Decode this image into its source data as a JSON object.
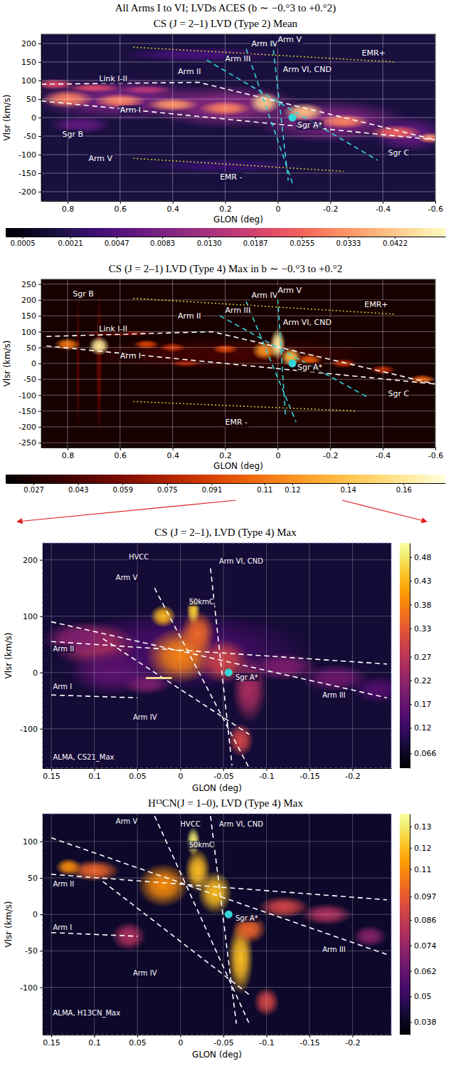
{
  "title": "All Arms I to VI; LVDs ACES (b ∼ −0.°3 to +0.°2)",
  "chart_data": [
    {
      "type": "heatmap",
      "title": "CS (J = 2–1) LVD (Type 2) Mean",
      "x_label": "GLON (deg)",
      "y_label": "Vlsr (km/s)",
      "xlim": [
        0.9,
        -0.6
      ],
      "xticks": [
        0.8,
        0.6,
        0.4,
        0.2,
        0,
        -0.2,
        -0.4,
        -0.6
      ],
      "ylim": [
        -225,
        225
      ],
      "yticks": [
        -200,
        -150,
        -100,
        -50,
        0,
        50,
        100,
        150,
        200
      ],
      "grid": true,
      "color": "magma",
      "background": 0.0015,
      "emission": {
        "l": [
          0.6,
          0.2,
          -0.2,
          -0.5,
          0.75,
          0.3,
          0.2,
          0.8,
          0.6,
          0.4,
          0.2,
          0.05,
          -0.1,
          -0.25,
          -0.45,
          -0.58,
          0.85,
          0.7,
          0.5
        ],
        "v": [
          50,
          30,
          -10,
          -45,
          -20,
          170,
          -130,
          50,
          45,
          35,
          25,
          40,
          15,
          -10,
          -40,
          -55,
          90,
          80,
          75
        ],
        "dl": [
          0.35,
          0.3,
          0.3,
          0.15,
          0.12,
          0.3,
          0.3,
          0.1,
          0.1,
          0.1,
          0.1,
          0.06,
          0.08,
          0.1,
          0.1,
          0.05,
          0.08,
          0.1,
          0.1
        ],
        "dv": [
          60,
          60,
          60,
          50,
          25,
          20,
          20,
          25,
          20,
          18,
          20,
          30,
          25,
          20,
          20,
          15,
          15,
          12,
          12
        ],
        "values": [
          0.008,
          0.01,
          0.009,
          0.006,
          0.006,
          0.004,
          0.003,
          0.03,
          0.03,
          0.033,
          0.03,
          0.042,
          0.04,
          0.03,
          0.025,
          0.03,
          0.02,
          0.02,
          0.015
        ]
      },
      "lines": [
        {
          "color": "#ffffff",
          "line_style": "dashed",
          "l": [
            0.9,
            0.3,
            -0.6
          ],
          "v": [
            90,
            95,
            -60
          ]
        },
        {
          "color": "#ffffff",
          "line_style": "dashed",
          "l": [
            0.9,
            -0.6
          ],
          "v": [
            45,
            -60
          ]
        },
        {
          "color": "#33d6d6",
          "line_style": "dashed",
          "l": [
            0.27,
            -0.38
          ],
          "v": [
            155,
            -115
          ]
        },
        {
          "color": "#33d6d6",
          "line_style": "dashed",
          "l": [
            0.12,
            -0.06
          ],
          "v": [
            185,
            -185
          ]
        },
        {
          "color": "#33d6d6",
          "line_style": "dashed",
          "l": [
            0.02,
            -0.04
          ],
          "v": [
            205,
            -170
          ]
        },
        {
          "color": "#c8c832",
          "line_style": "dotted",
          "l": [
            0.55,
            -0.45
          ],
          "v": [
            190,
            150
          ]
        },
        {
          "color": "#c8c832",
          "line_style": "dotted",
          "l": [
            0.55,
            -0.25
          ],
          "v": [
            -110,
            -145
          ]
        }
      ],
      "points": {
        "l": [
          -0.056
        ],
        "v": [
          0
        ],
        "color": "#33d6d6"
      },
      "annotations": [
        {
          "text": "Link I-II",
          "l": 0.68,
          "v": 105
        },
        {
          "text": "Arm I",
          "l": 0.6,
          "v": 20
        },
        {
          "text": "Arm II",
          "l": 0.38,
          "v": 125
        },
        {
          "text": "Arm III",
          "l": 0.2,
          "v": 160
        },
        {
          "text": "Arm IV",
          "l": 0.1,
          "v": 200
        },
        {
          "text": "Arm V",
          "l": 0.0,
          "v": 212
        },
        {
          "text": "Arm VI, CND",
          "l": -0.02,
          "v": 130
        },
        {
          "text": "EMR+",
          "l": -0.32,
          "v": 175
        },
        {
          "text": "Sgr B",
          "l": 0.82,
          "v": -45
        },
        {
          "text": "Sgr A*",
          "l": -0.075,
          "v": -20
        },
        {
          "text": "Sgr C",
          "l": -0.42,
          "v": -95
        },
        {
          "text": "Arm V",
          "l": 0.72,
          "v": -110
        },
        {
          "text": "EMR -",
          "l": 0.22,
          "v": -160
        }
      ],
      "colorbar": {
        "range": [
          0.0002,
          0.053
        ],
        "ticks": [
          0.0005,
          0.0021,
          0.0047,
          0.0083,
          {
            "value": 0.013,
            "label": "0.0130"
          },
          0.0187,
          0.0255,
          0.0333,
          0.0422
        ]
      }
    },
    {
      "type": "heatmap",
      "title": "CS (J = 2–1) LVD (Type 4) Max in b ∼ −0.°3 to +0.°2",
      "x_label": "GLON (deg)",
      "y_label": "Vlsr (km/s)",
      "xlim": [
        0.9,
        -0.6
      ],
      "xticks": [
        0.8,
        0.6,
        0.4,
        0.2,
        0,
        -0.2,
        -0.4,
        -0.6
      ],
      "ylim": [
        -265,
        265
      ],
      "yticks": [
        -250,
        -200,
        -150,
        -100,
        -50,
        0,
        50,
        100,
        150,
        200,
        250
      ],
      "grid": true,
      "color": "hot",
      "background": 0.025,
      "emission": {
        "l": [
          0.2,
          0.68,
          0.76,
          0.6,
          0.8,
          0.68,
          0.5,
          0.4,
          0.2,
          0.05,
          0.0,
          -0.05,
          -0.12,
          -0.25,
          -0.4,
          -0.55,
          0.35
        ],
        "v": [
          30,
          0,
          0,
          95,
          60,
          55,
          60,
          50,
          45,
          40,
          60,
          20,
          10,
          0,
          -20,
          -50,
          0
        ],
        "dl": [
          0.6,
          0.012,
          0.008,
          0.15,
          0.05,
          0.04,
          0.05,
          0.05,
          0.05,
          0.05,
          0.03,
          0.04,
          0.05,
          0.05,
          0.05,
          0.05,
          0.06
        ],
        "dv": [
          50,
          240,
          240,
          10,
          20,
          30,
          15,
          15,
          15,
          30,
          50,
          30,
          20,
          15,
          15,
          15,
          12
        ],
        "values": [
          0.04,
          0.05,
          0.045,
          0.06,
          0.11,
          0.16,
          0.09,
          0.08,
          0.09,
          0.12,
          0.16,
          0.14,
          0.1,
          0.08,
          0.08,
          0.1,
          0.07
        ]
      },
      "lines": [
        {
          "color": "#ffffff",
          "line_style": "dashed",
          "l": [
            0.88,
            0.25,
            -0.6
          ],
          "v": [
            85,
            100,
            -65
          ]
        },
        {
          "color": "#ffffff",
          "line_style": "dashed",
          "l": [
            0.88,
            -0.6
          ],
          "v": [
            55,
            -65
          ]
        },
        {
          "color": "#33d6d6",
          "line_style": "dashed",
          "l": [
            0.22,
            -0.35
          ],
          "v": [
            150,
            -110
          ]
        },
        {
          "color": "#33d6d6",
          "line_style": "dashed",
          "l": [
            0.12,
            -0.07
          ],
          "v": [
            195,
            -185
          ]
        },
        {
          "color": "#33d6d6",
          "line_style": "dashed",
          "l": [
            0.0,
            -0.03
          ],
          "v": [
            205,
            -170
          ]
        },
        {
          "color": "#c8c832",
          "line_style": "dotted",
          "l": [
            0.55,
            -0.45
          ],
          "v": [
            205,
            155
          ]
        },
        {
          "color": "#c8c832",
          "line_style": "dotted",
          "l": [
            0.55,
            -0.3
          ],
          "v": [
            -120,
            -150
          ]
        }
      ],
      "points": {
        "l": [
          -0.056
        ],
        "v": [
          0
        ],
        "color": "#33d6d6"
      },
      "annotations": [
        {
          "text": "Sgr B",
          "l": 0.78,
          "v": 220
        },
        {
          "text": "Link I-II",
          "l": 0.68,
          "v": 110
        },
        {
          "text": "Arm I",
          "l": 0.6,
          "v": 25
        },
        {
          "text": "Arm II",
          "l": 0.38,
          "v": 150
        },
        {
          "text": "Arm III",
          "l": 0.2,
          "v": 168
        },
        {
          "text": "Arm IV",
          "l": 0.1,
          "v": 215
        },
        {
          "text": "Arm V",
          "l": 0.0,
          "v": 232
        },
        {
          "text": "Arm VI, CND",
          "l": -0.02,
          "v": 130
        },
        {
          "text": "EMR+",
          "l": -0.33,
          "v": 185
        },
        {
          "text": "Sgr A*",
          "l": -0.075,
          "v": -12
        },
        {
          "text": "Sgr C",
          "l": -0.42,
          "v": -95
        },
        {
          "text": "EMR -",
          "l": 0.2,
          "v": -185
        }
      ],
      "colorbar": {
        "range": [
          0.017,
          0.175
        ],
        "ticks": [
          0.027,
          0.043,
          0.059,
          0.075,
          0.091,
          0.11,
          0.12,
          0.14,
          0.16
        ]
      }
    },
    {
      "type": "heatmap",
      "title": "CS (J = 2–1), LVD (Type 4) Max",
      "x_label": "GLON (deg)",
      "y_label": "Vlsr (km/s)",
      "xlim": [
        0.16,
        -0.245
      ],
      "xticks": [
        0.15,
        0.1,
        0.05,
        0,
        -0.05,
        -0.1,
        -0.15,
        -0.2
      ],
      "ylim": [
        -170,
        230
      ],
      "yticks": [
        -100,
        0,
        100,
        200
      ],
      "grid": true,
      "color": "inferno",
      "background": 0.08,
      "emission": {
        "l": [
          0.0,
          0.1,
          0.0,
          0.02,
          -0.02,
          -0.05,
          -0.08,
          -0.07,
          -0.12,
          -0.18,
          -0.23,
          0.12,
          0.04,
          0.08,
          -0.015
        ],
        "v": [
          40,
          50,
          30,
          100,
          70,
          20,
          -30,
          -120,
          10,
          -10,
          -30,
          60,
          -20,
          0,
          110
        ],
        "dl": [
          0.15,
          0.05,
          0.04,
          0.015,
          0.02,
          0.03,
          0.02,
          0.015,
          0.04,
          0.04,
          0.03,
          0.04,
          0.03,
          0.05,
          0.008
        ],
        "dv": [
          70,
          40,
          50,
          20,
          40,
          40,
          60,
          30,
          25,
          25,
          25,
          30,
          20,
          40,
          25
        ],
        "values": [
          0.14,
          0.25,
          0.38,
          0.43,
          0.35,
          0.3,
          0.25,
          0.3,
          0.2,
          0.18,
          0.15,
          0.2,
          0.2,
          0.16,
          0.45
        ]
      },
      "lines": [
        {
          "color": "#ffffff",
          "line_style": "dashed",
          "l": [
            0.15,
            -0.24
          ],
          "v": [
            90,
            -45
          ]
        },
        {
          "color": "#ffffff",
          "line_style": "dashed",
          "l": [
            0.15,
            -0.24
          ],
          "v": [
            55,
            15
          ]
        },
        {
          "color": "#ffffff",
          "line_style": "dashed",
          "l": [
            0.15,
            0.05
          ],
          "v": [
            -40,
            -45
          ]
        },
        {
          "color": "#ffffff",
          "line_style": "dashed",
          "l": [
            0.03,
            -0.08
          ],
          "v": [
            150,
            -170
          ]
        },
        {
          "color": "#ffffff",
          "line_style": "dashed",
          "l": [
            -0.035,
            -0.06
          ],
          "v": [
            185,
            -165
          ]
        },
        {
          "color": "#ffffff",
          "line_style": "dashed",
          "l": [
            0.09,
            -0.08
          ],
          "v": [
            60,
            -110
          ]
        },
        {
          "color": "#ffff99",
          "line_style": "solid",
          "l": [
            0.04,
            0.01
          ],
          "v": [
            -10,
            -10
          ]
        }
      ],
      "points": {
        "l": [
          -0.056
        ],
        "v": [
          0
        ],
        "color": "#33d6d6"
      },
      "annotations": [
        {
          "text": "HVCC",
          "l": 0.06,
          "v": 205
        },
        {
          "text": "Arm V",
          "l": 0.075,
          "v": 168
        },
        {
          "text": "Arm VI, CND",
          "l": -0.045,
          "v": 198
        },
        {
          "text": "50kmC",
          "l": -0.01,
          "v": 125
        },
        {
          "text": "Arm II",
          "l": 0.148,
          "v": 42
        },
        {
          "text": "Arm I",
          "l": 0.148,
          "v": -25
        },
        {
          "text": "Arm IV",
          "l": 0.055,
          "v": -80
        },
        {
          "text": "Sgr A*",
          "l": -0.064,
          "v": -8
        },
        {
          "text": "Arm III",
          "l": -0.165,
          "v": -40
        },
        {
          "text": "ALMA, CS21_Max",
          "l": 0.148,
          "v": -150
        }
      ],
      "colorbar": {
        "range": [
          0.035,
          0.51
        ],
        "ticks": [
          0.066,
          0.12,
          0.17,
          0.22,
          0.27,
          0.33,
          0.38,
          0.43,
          0.48
        ]
      }
    },
    {
      "type": "heatmap",
      "title": "H¹³CN(J = 1–0), LVD (Type 4) Max",
      "x_label": "GLON (deg)",
      "y_label": "Vlsr (km/s)",
      "xlim": [
        0.16,
        -0.245
      ],
      "xticks": [
        0.15,
        0.1,
        0.05,
        0,
        -0.05,
        -0.1,
        -0.15,
        -0.2
      ],
      "ylim": [
        -165,
        138
      ],
      "yticks": [
        -100,
        -50,
        0,
        50,
        100
      ],
      "grid": true,
      "color": "inferno",
      "background": 0.04,
      "emission": {
        "l": [
          -0.015,
          0.1,
          0.02,
          -0.02,
          -0.04,
          -0.07,
          -0.08,
          -0.12,
          -0.17,
          -0.22,
          0.06,
          -0.1,
          0.13
        ],
        "v": [
          100,
          60,
          40,
          60,
          30,
          -60,
          -20,
          10,
          0,
          -30,
          -30,
          -120,
          65
        ],
        "dl": [
          0.008,
          0.03,
          0.03,
          0.015,
          0.02,
          0.015,
          0.02,
          0.03,
          0.03,
          0.02,
          0.02,
          0.015,
          0.015
        ],
        "dv": [
          20,
          15,
          30,
          30,
          30,
          50,
          20,
          15,
          15,
          15,
          20,
          20,
          12
        ],
        "values": [
          0.13,
          0.1,
          0.11,
          0.12,
          0.12,
          0.12,
          0.1,
          0.09,
          0.08,
          0.07,
          0.08,
          0.09,
          0.11
        ]
      },
      "lines": [
        {
          "color": "#ffffff",
          "line_style": "dashed",
          "l": [
            0.15,
            -0.24
          ],
          "v": [
            105,
            -55
          ]
        },
        {
          "color": "#ffffff",
          "line_style": "dashed",
          "l": [
            0.15,
            -0.24
          ],
          "v": [
            55,
            20
          ]
        },
        {
          "color": "#ffffff",
          "line_style": "dashed",
          "l": [
            0.15,
            0.05
          ],
          "v": [
            -25,
            -30
          ]
        },
        {
          "color": "#ffffff",
          "line_style": "dashed",
          "l": [
            0.03,
            -0.08
          ],
          "v": [
            135,
            -150
          ]
        },
        {
          "color": "#ffffff",
          "line_style": "dashed",
          "l": [
            -0.035,
            -0.065
          ],
          "v": [
            135,
            -150
          ]
        },
        {
          "color": "#ffffff",
          "line_style": "dashed",
          "l": [
            0.09,
            -0.08
          ],
          "v": [
            45,
            -110
          ]
        }
      ],
      "points": {
        "l": [
          -0.056
        ],
        "v": [
          0
        ],
        "color": "#33d6d6"
      },
      "annotations": [
        {
          "text": "Arm V",
          "l": 0.075,
          "v": 128
        },
        {
          "text": "HVCC",
          "l": 0.0,
          "v": 124
        },
        {
          "text": "Arm VI, CND",
          "l": -0.045,
          "v": 124
        },
        {
          "text": "50kmC",
          "l": -0.01,
          "v": 95
        },
        {
          "text": "Arm II",
          "l": 0.148,
          "v": 42
        },
        {
          "text": "Arm I",
          "l": 0.148,
          "v": -18
        },
        {
          "text": "Arm IV",
          "l": 0.055,
          "v": -80
        },
        {
          "text": "Sgr A*",
          "l": -0.064,
          "v": -5
        },
        {
          "text": "Arm III",
          "l": -0.165,
          "v": -48
        },
        {
          "text": "ALMA, H13CN_Max",
          "l": 0.148,
          "v": -135
        }
      ],
      "colorbar": {
        "range": [
          0.032,
          0.136
        ],
        "ticks": [
          0.038,
          0.05,
          0.062,
          0.074,
          0.086,
          0.097,
          0.11,
          0.12,
          0.13
        ]
      }
    }
  ]
}
